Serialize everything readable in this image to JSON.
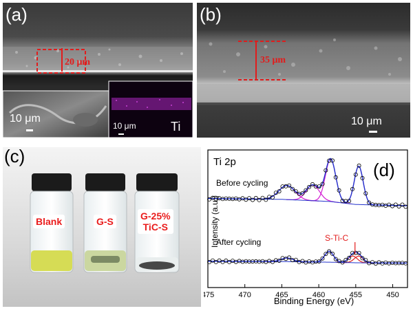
{
  "panels": {
    "a": {
      "label": "(a)",
      "thickness": "20 μm",
      "scale_left": "10 μm",
      "scale_inset": "10 μm",
      "inset_element": "Ti"
    },
    "b": {
      "label": "(b)",
      "thickness": "35 μm",
      "scale": "10 μm"
    },
    "c": {
      "label": "(c)",
      "vials": [
        {
          "label_line1": "Blank",
          "label_line2": ""
        },
        {
          "label_line1": "G-S",
          "label_line2": ""
        },
        {
          "label_line1": "G-25%",
          "label_line2": "TiC-S"
        }
      ]
    },
    "d": {
      "label": "(d)"
    }
  },
  "chart_data": {
    "type": "line",
    "title": "Ti 2p",
    "xlabel": "Binding Energy (eV)",
    "ylabel": "Intensity (a.u.)",
    "xlim": [
      475,
      448
    ],
    "x_reversed": true,
    "xticks": [
      475,
      470,
      465,
      460,
      455,
      450
    ],
    "series_labels": [
      "Before cycling",
      "After cycling"
    ],
    "annotation": "S-Ti-C",
    "series": [
      {
        "peaks": [
          {
            "center": 464.3,
            "height": 0.33,
            "width": 1.1
          },
          {
            "center": 460.8,
            "height": 0.37,
            "width": 0.9
          },
          {
            "center": 458.4,
            "height": 1.0,
            "width": 0.7
          },
          {
            "center": 454.6,
            "height": 0.9,
            "width": 0.6
          }
        ],
        "baseline": [
          [
            475,
            0.12
          ],
          [
            465,
            0.1
          ],
          [
            458.5,
            0.05
          ],
          [
            455,
            -0.02
          ],
          [
            448,
            -0.05
          ]
        ]
      },
      {
        "peaks": [
          {
            "center": 464.3,
            "height": 0.12,
            "width": 0.8
          },
          {
            "center": 458.6,
            "height": 0.36,
            "width": 0.6
          },
          {
            "center": 455.4,
            "height": 0.22,
            "width": 0.6
          },
          {
            "center": 454.6,
            "height": 0.22,
            "width": 0.6
          }
        ],
        "baseline": [
          [
            475,
            0.05
          ],
          [
            465,
            0.04
          ],
          [
            458.5,
            0.02
          ],
          [
            455,
            0.0
          ],
          [
            448,
            -0.01
          ]
        ]
      }
    ],
    "colors": {
      "data": "#000000",
      "envelope": "#2233cc",
      "component": "#d21ad2",
      "s_ti_c": "#e02020",
      "annotation": "#e21b1b"
    }
  }
}
